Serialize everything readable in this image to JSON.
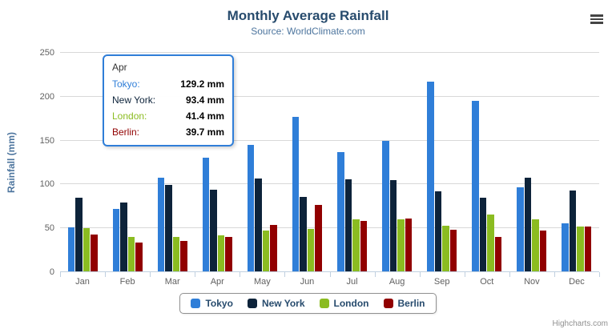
{
  "title": "Monthly Average Rainfall",
  "subtitle": "Source: WorldClimate.com",
  "credits": "Highcharts.com",
  "export_menu": {
    "icon": "hamburger-icon"
  },
  "chart_data": {
    "type": "bar",
    "title": "Monthly Average Rainfall",
    "subtitle": "Source: WorldClimate.com",
    "categories": [
      "Jan",
      "Feb",
      "Mar",
      "Apr",
      "May",
      "Jun",
      "Jul",
      "Aug",
      "Sep",
      "Oct",
      "Nov",
      "Dec"
    ],
    "series": [
      {
        "name": "Tokyo",
        "color": "#2f7ed8",
        "values": [
          49.9,
          71.5,
          106.4,
          129.2,
          144.0,
          176.0,
          135.6,
          148.5,
          216.4,
          194.1,
          95.6,
          54.4
        ]
      },
      {
        "name": "New York",
        "color": "#0d233a",
        "values": [
          83.6,
          78.8,
          98.5,
          93.4,
          106.0,
          84.5,
          105.0,
          104.3,
          91.2,
          83.5,
          106.6,
          92.3
        ]
      },
      {
        "name": "London",
        "color": "#8bbc21",
        "values": [
          48.9,
          38.8,
          39.3,
          41.4,
          47.0,
          48.3,
          59.0,
          59.6,
          52.4,
          65.2,
          59.3,
          51.2
        ]
      },
      {
        "name": "Berlin",
        "color": "#910000",
        "values": [
          42.4,
          33.2,
          34.5,
          39.7,
          52.6,
          75.5,
          57.4,
          60.4,
          47.6,
          39.1,
          46.8,
          51.1
        ]
      }
    ],
    "xlabel": "",
    "ylabel": "Rainfall (mm)",
    "ylim": [
      0,
      250
    ],
    "yticks": [
      0,
      50,
      100,
      150,
      200,
      250
    ],
    "grid": true,
    "legend_position": "bottom"
  },
  "tooltip": {
    "header": "Apr",
    "rows": [
      {
        "name": "Tokyo",
        "value": "129.2 mm"
      },
      {
        "name": "New York",
        "value": "93.4 mm"
      },
      {
        "name": "London",
        "value": "41.4 mm"
      },
      {
        "name": "Berlin",
        "value": "39.7 mm"
      }
    ]
  }
}
